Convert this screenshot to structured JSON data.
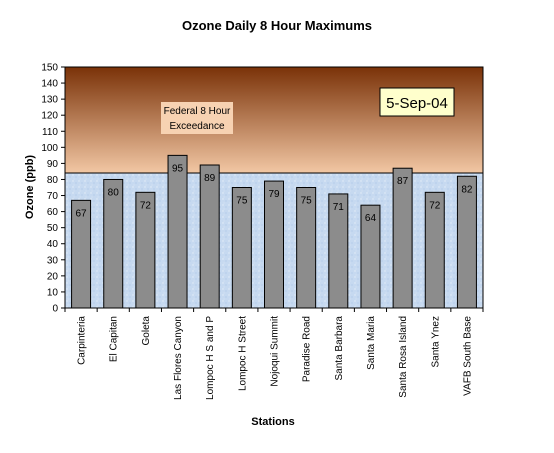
{
  "chart_data": {
    "type": "bar",
    "title": "Ozone Daily 8 Hour Maximums",
    "xlabel": "Stations",
    "ylabel": "Ozone (ppb)",
    "ylim": [
      0,
      150
    ],
    "ytick_step": 10,
    "categories": [
      "Carpinteria",
      "El Capitan",
      "Goleta",
      "Las Flores Canyon",
      "Lompoc H S and P",
      "Lompoc H Street",
      "Nojoqui Summit",
      "Paradise Road",
      "Santa Barbara",
      "Santa Maria",
      "Santa Rosa Island",
      "Santa Ynez",
      "VAFB South Base"
    ],
    "values": [
      67,
      80,
      72,
      95,
      89,
      75,
      79,
      75,
      71,
      64,
      87,
      72,
      82
    ],
    "exceedance_threshold": 84,
    "exceedance_label_line1": "Federal 8 Hour",
    "exceedance_label_line2": "Exceedance",
    "date_label": "5-Sep-04",
    "grid": false,
    "colors": {
      "bar": "#8c8c8c",
      "exceedance_top": "#7a3208",
      "exceedance_bottom": "#f2c7a4",
      "below_fill": "#c6d9f0",
      "date_box": "#ffffcc",
      "threshold_line": "#000000"
    }
  }
}
